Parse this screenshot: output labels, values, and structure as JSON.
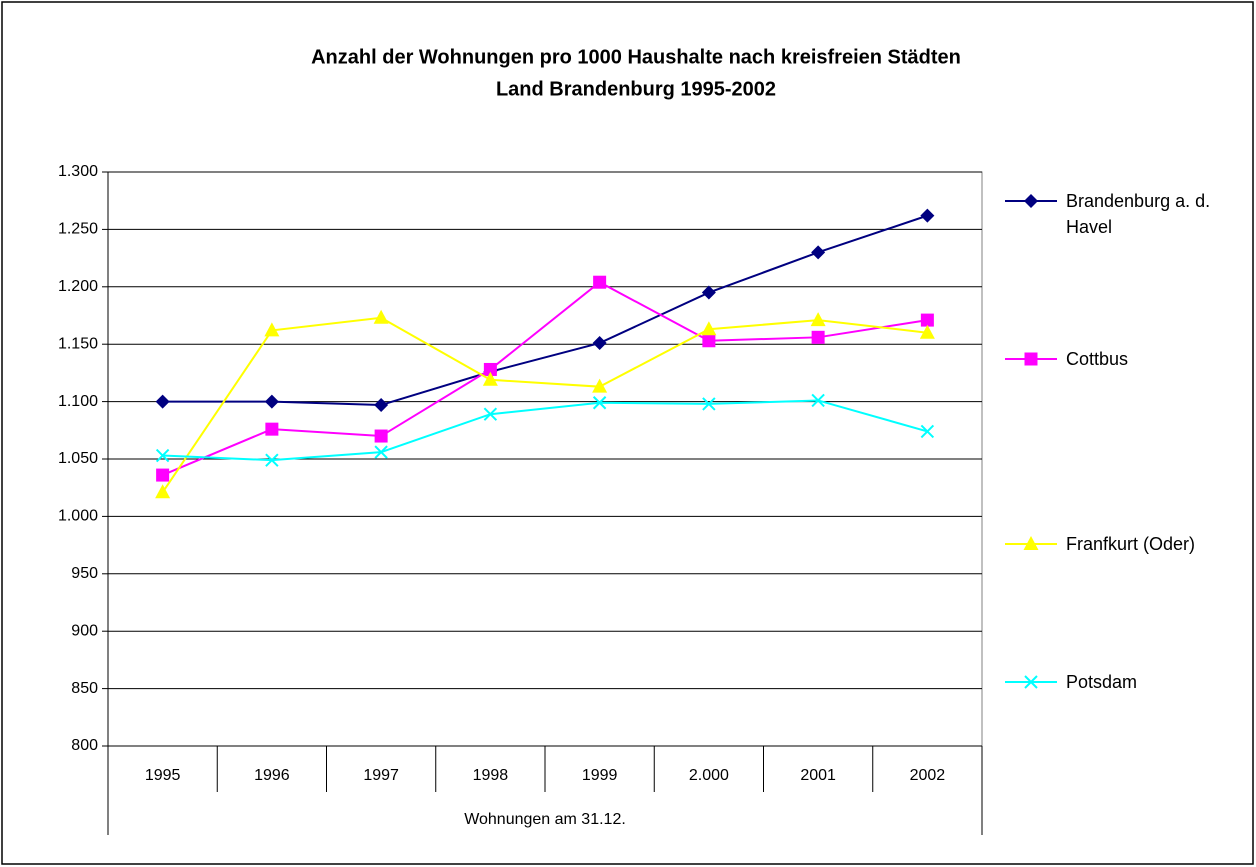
{
  "chart_data": {
    "type": "line",
    "title": "Anzahl der Wohnungen pro 1000 Haushalte nach kreisfreien Städten",
    "subtitle": "Land Brandenburg 1995-2002",
    "x_group_label": "Wohnungen am 31.12.",
    "categories": [
      "1995",
      "1996",
      "1997",
      "1998",
      "1999",
      "2.000",
      "2001",
      "2002"
    ],
    "series": [
      {
        "name": "Brandenburg a. d. Havel",
        "color": "#000080",
        "marker": "diamond",
        "values": [
          1100,
          1100,
          1097,
          1126,
          1151,
          1195,
          1230,
          1262
        ]
      },
      {
        "name": "Cottbus",
        "color": "#ff00ff",
        "marker": "square",
        "values": [
          1036,
          1076,
          1070,
          1128,
          1204,
          1153,
          1156,
          1171
        ]
      },
      {
        "name": "Franfkurt (Oder)",
        "color": "#ffff00",
        "marker": "triangle",
        "values": [
          1021,
          1162,
          1173,
          1119,
          1113,
          1163,
          1171,
          1160
        ]
      },
      {
        "name": "Potsdam",
        "color": "#00ffff",
        "marker": "x",
        "values": [
          1053,
          1049,
          1056,
          1089,
          1099,
          1098,
          1101,
          1074
        ]
      }
    ],
    "ylim": [
      800,
      1300
    ],
    "yticks": [
      800,
      850,
      900,
      950,
      {
        "value": 1000,
        "label": "1.000"
      },
      {
        "value": 1050,
        "label": "1.050"
      },
      {
        "value": 1100,
        "label": "1.100"
      },
      {
        "value": 1150,
        "label": "1.150"
      },
      {
        "value": 1200,
        "label": "1.200"
      },
      {
        "value": 1250,
        "label": "1.250"
      },
      {
        "value": 1300,
        "label": "1.300"
      }
    ],
    "grid": true,
    "legend": "right"
  }
}
